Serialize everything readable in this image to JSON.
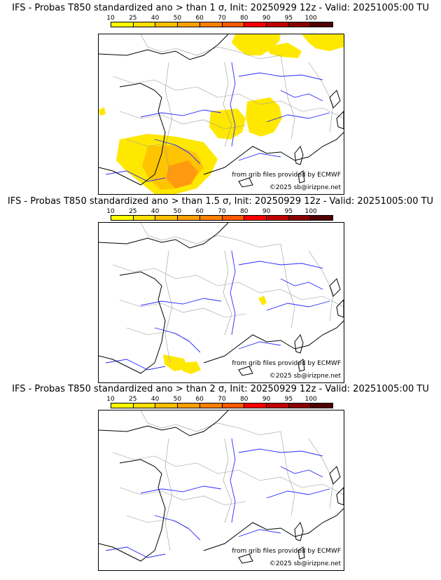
{
  "colorbar": {
    "ticks": [
      "10",
      "25",
      "40",
      "50",
      "60",
      "70",
      "80",
      "90",
      "95",
      "100"
    ],
    "colors": [
      "#ffff00",
      "#ffe000",
      "#ffc000",
      "#ffa000",
      "#ff8000",
      "#ff5a00",
      "#ff0000",
      "#c00000",
      "#8a0000",
      "#500000"
    ]
  },
  "map_colors": {
    "land": "#ffffff",
    "rivers": "#2a2aff",
    "borders": "#999999",
    "coast": "#000000",
    "prob_low": "#ffe800",
    "prob_mid": "#ffc400",
    "prob_high": "#ff9a10"
  },
  "panels": [
    {
      "title": "IFS - Probas T850  standardized ano > than 1 σ, Init: 20250929 12z - Valid: 20251005:00 TU",
      "credit_source": "from grib files provided by ECMWF",
      "credit_copyright": "©2025 sb@irizpne.net",
      "probability_areas": [
        "northern-belgium-rhine",
        "alps-swiss",
        "rhone-lyon",
        "provence-coast",
        "southwest-france",
        "pyrenees-catalonia",
        "brittany-tip"
      ]
    },
    {
      "title": "IFS - Probas T850  standardized ano > than 1.5 σ, Init: 20250929 12z - Valid: 20251005:00 TU",
      "credit_source": "from grib files provided by ECMWF",
      "credit_copyright": "©2025 sb@irizpne.net",
      "probability_areas": [
        "western-alps-spot",
        "pyrenees-spot",
        "catalonia-coast"
      ]
    },
    {
      "title": "IFS - Probas T850  standardized ano > than 2 σ, Init: 20250929 12z - Valid: 20251005:00 TU",
      "credit_source": "from grib files provided by ECMWF",
      "credit_copyright": "©2025 sb@irizpne.net",
      "probability_areas": []
    }
  ]
}
